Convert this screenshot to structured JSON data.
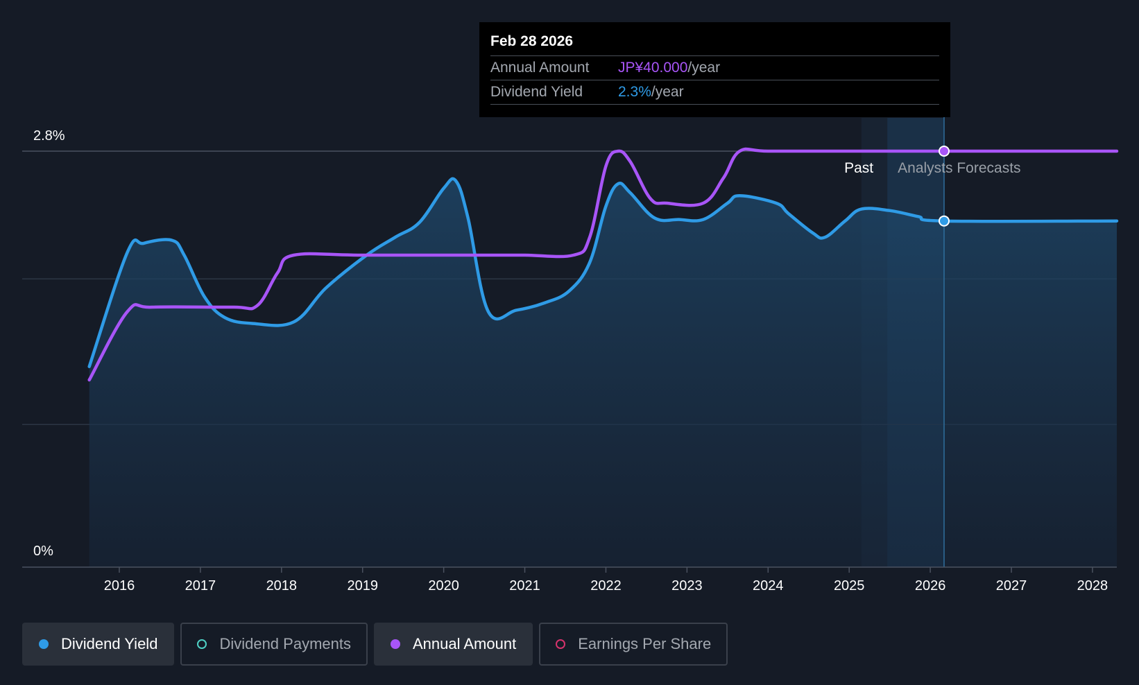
{
  "tooltip": {
    "date": "Feb 28 2026",
    "rows": [
      {
        "label": "Annual Amount",
        "value": "JP¥40.000",
        "unit": "/year"
      },
      {
        "label": "Dividend Yield",
        "value": "2.3%",
        "unit": "/year"
      }
    ]
  },
  "legend": [
    {
      "label": "Dividend Yield",
      "color": "#2f9be6",
      "active": true,
      "filled": true
    },
    {
      "label": "Dividend Payments",
      "color": "#4fd1c5",
      "active": false,
      "filled": false
    },
    {
      "label": "Annual Amount",
      "color": "#a855f7",
      "active": true,
      "filled": true
    },
    {
      "label": "Earnings Per Share",
      "color": "#d6336c",
      "active": false,
      "filled": false
    }
  ],
  "chart_data": {
    "type": "line",
    "y_tick_labels": [
      "2.8%",
      "0%"
    ],
    "ylim": [
      0,
      2.8
    ],
    "x_tick_labels": [
      "2016",
      "2017",
      "2018",
      "2019",
      "2020",
      "2021",
      "2022",
      "2023",
      "2024",
      "2025",
      "2026",
      "2027",
      "2028"
    ],
    "xlim": [
      2015.35,
      2028.3
    ],
    "grid": true,
    "past_label": "Past",
    "forecast_label": "Analysts Forecasts",
    "past_end": 2025.15,
    "forecast_band": [
      2025.47,
      2026.17
    ],
    "marker_x": 2026.17,
    "series": [
      {
        "name": "Dividend Yield",
        "color": "#2f9be6",
        "area": true,
        "points": [
          [
            2015.63,
            1.35
          ],
          [
            2016.1,
            2.12
          ],
          [
            2016.3,
            2.18
          ],
          [
            2016.65,
            2.2
          ],
          [
            2016.8,
            2.1
          ],
          [
            2017.05,
            1.82
          ],
          [
            2017.3,
            1.68
          ],
          [
            2017.65,
            1.64
          ],
          [
            2018.15,
            1.65
          ],
          [
            2018.55,
            1.88
          ],
          [
            2019.05,
            2.1
          ],
          [
            2019.4,
            2.22
          ],
          [
            2019.7,
            2.32
          ],
          [
            2020.0,
            2.55
          ],
          [
            2020.15,
            2.6
          ],
          [
            2020.3,
            2.35
          ],
          [
            2020.55,
            1.72
          ],
          [
            2020.9,
            1.73
          ],
          [
            2021.25,
            1.78
          ],
          [
            2021.55,
            1.86
          ],
          [
            2021.8,
            2.05
          ],
          [
            2022.0,
            2.43
          ],
          [
            2022.15,
            2.58
          ],
          [
            2022.3,
            2.52
          ],
          [
            2022.6,
            2.35
          ],
          [
            2022.9,
            2.34
          ],
          [
            2023.2,
            2.34
          ],
          [
            2023.5,
            2.45
          ],
          [
            2023.65,
            2.5
          ],
          [
            2024.1,
            2.45
          ],
          [
            2024.25,
            2.38
          ],
          [
            2024.55,
            2.25
          ],
          [
            2024.7,
            2.22
          ],
          [
            2024.95,
            2.33
          ],
          [
            2025.15,
            2.41
          ],
          [
            2025.5,
            2.4
          ],
          [
            2025.85,
            2.36
          ],
          [
            2026.17,
            2.33
          ],
          [
            2028.3,
            2.33
          ]
        ]
      },
      {
        "name": "Annual Amount",
        "color": "#a855f7",
        "area": false,
        "points": [
          [
            2015.63,
            1.26
          ],
          [
            2016.1,
            1.72
          ],
          [
            2016.4,
            1.75
          ],
          [
            2017.4,
            1.75
          ],
          [
            2017.7,
            1.76
          ],
          [
            2017.95,
            1.98
          ],
          [
            2018.15,
            2.1
          ],
          [
            2019.0,
            2.1
          ],
          [
            2020.5,
            2.1
          ],
          [
            2021.0,
            2.1
          ],
          [
            2021.6,
            2.1
          ],
          [
            2021.8,
            2.22
          ],
          [
            2022.0,
            2.7
          ],
          [
            2022.15,
            2.8
          ],
          [
            2022.3,
            2.73
          ],
          [
            2022.55,
            2.48
          ],
          [
            2022.75,
            2.45
          ],
          [
            2023.2,
            2.45
          ],
          [
            2023.45,
            2.62
          ],
          [
            2023.65,
            2.8
          ],
          [
            2024.0,
            2.8
          ],
          [
            2025.0,
            2.8
          ],
          [
            2026.17,
            2.8
          ],
          [
            2028.3,
            2.8
          ]
        ]
      }
    ]
  }
}
